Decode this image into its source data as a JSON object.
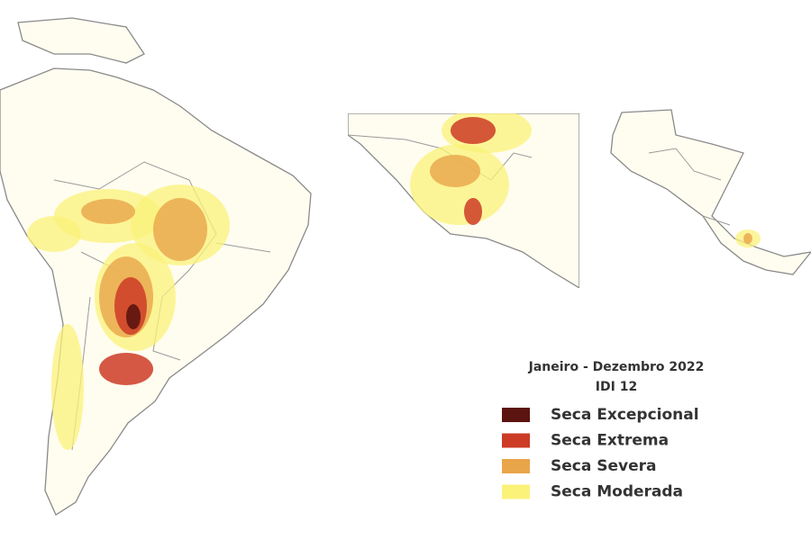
{
  "legend": {
    "title": "Janeiro - Dezembro 2022",
    "subtitle": "IDI 12",
    "items": [
      {
        "label": "Seca Excepcional",
        "color": "#5c1410"
      },
      {
        "label": "Seca Extrema",
        "color": "#cc3b26"
      },
      {
        "label": "Seca Severa",
        "color": "#e9a54a"
      },
      {
        "label": "Seca Moderada",
        "color": "#fbf27a"
      }
    ]
  }
}
